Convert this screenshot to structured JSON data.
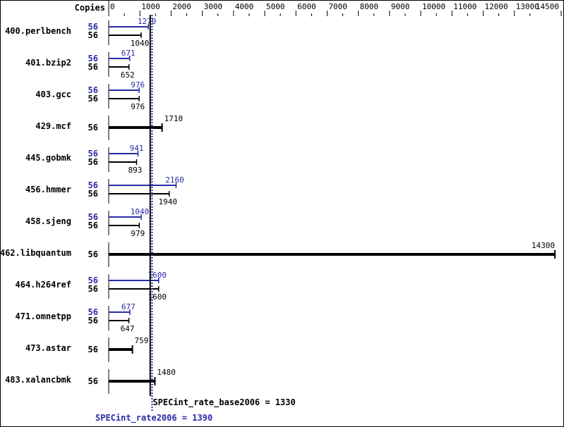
{
  "chart_data": {
    "type": "bar",
    "orientation": "horizontal",
    "copies_header": "Copies",
    "xlim": [
      0,
      14500
    ],
    "x_ticks": [
      0,
      1000,
      2000,
      3000,
      4000,
      5000,
      6000,
      7000,
      8000,
      9000,
      10000,
      11000,
      12000,
      13000,
      14500
    ],
    "categories": [
      "400.perlbench",
      "401.bzip2",
      "403.gcc",
      "429.mcf",
      "445.gobmk",
      "456.hmmer",
      "458.sjeng",
      "462.libquantum",
      "464.h264ref",
      "471.omnetpp",
      "473.astar",
      "483.xalancbmk"
    ],
    "series": [
      {
        "name": "SPECint_rate2006",
        "copies": [
          56,
          56,
          56,
          null,
          56,
          56,
          56,
          null,
          56,
          56,
          null,
          null
        ],
        "values": [
          1270,
          671,
          976,
          null,
          941,
          2160,
          1040,
          null,
          1600,
          677,
          null,
          null
        ]
      },
      {
        "name": "SPECint_rate_base2006",
        "copies": [
          56,
          56,
          56,
          56,
          56,
          56,
          56,
          56,
          56,
          56,
          56,
          56
        ],
        "values": [
          1040,
          652,
          976,
          1710,
          893,
          1940,
          979,
          14300,
          1600,
          647,
          759,
          1480
        ]
      }
    ],
    "reference_lines": [
      {
        "label": "SPECint_rate_base2006 = 1330",
        "value": 1330
      },
      {
        "label": "SPECint_rate2006 = 1390",
        "value": 1390
      }
    ]
  },
  "colors": {
    "peak": "#2a2aaa",
    "base": "#000000"
  }
}
